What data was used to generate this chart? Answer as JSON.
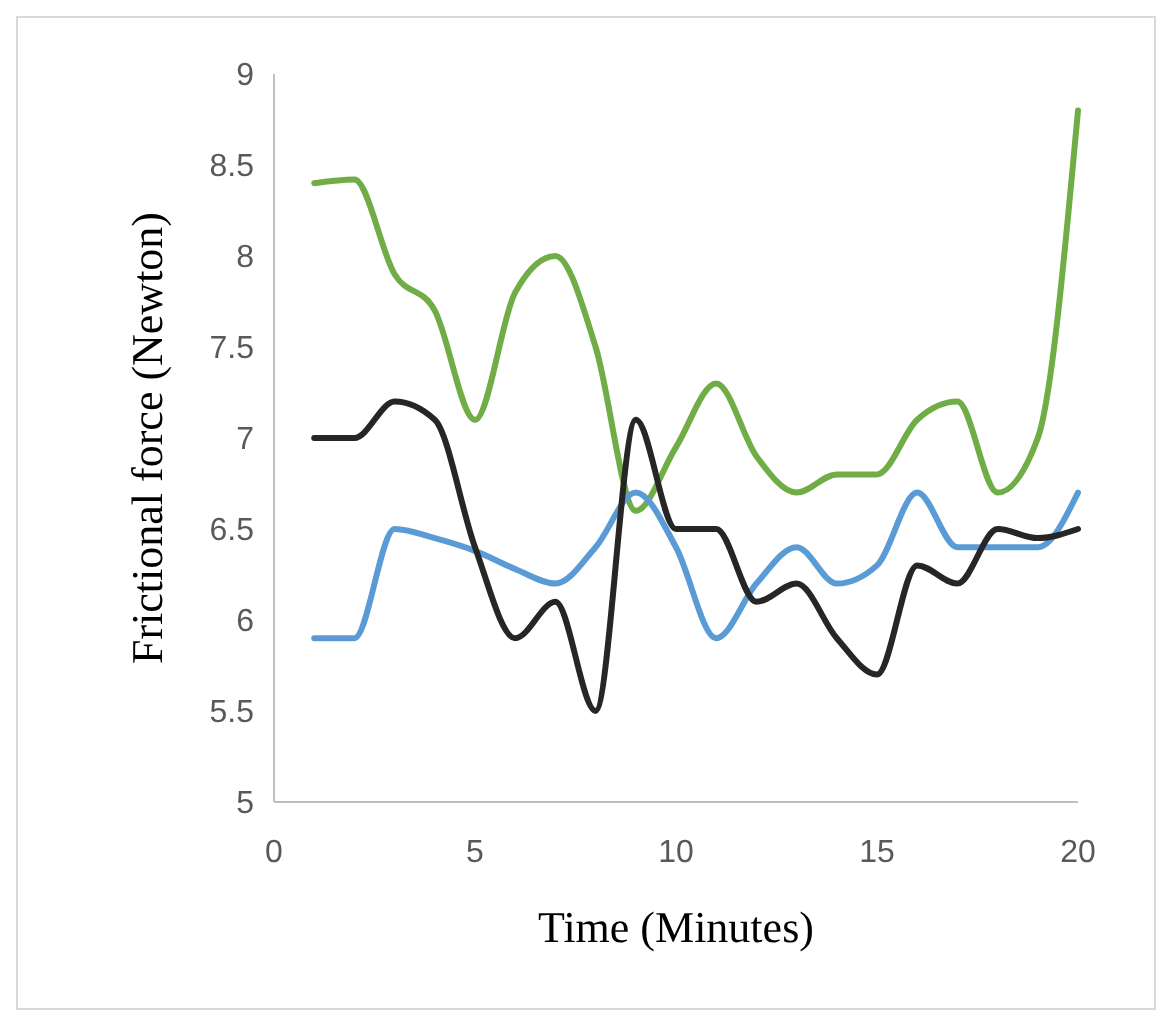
{
  "chart_data": {
    "type": "line",
    "xlabel": "Time (Minutes)",
    "ylabel": "Frictional force (Newton)",
    "x": [
      1,
      2,
      3,
      4,
      5,
      6,
      7,
      8,
      9,
      10,
      11,
      12,
      13,
      14,
      15,
      16,
      17,
      18,
      19,
      20
    ],
    "xlim": [
      0,
      20
    ],
    "xticks": [
      0,
      5,
      10,
      15,
      20
    ],
    "ylim": [
      5,
      9
    ],
    "yticks": [
      5,
      5.5,
      6,
      6.5,
      7,
      7.5,
      8,
      8.5,
      9
    ],
    "marker": "none",
    "line_style": "solid",
    "series": [
      {
        "color": "#70ad47",
        "values": [
          8.4,
          8.42,
          7.9,
          7.7,
          7.1,
          7.8,
          8.0,
          7.5,
          6.6,
          6.95,
          7.3,
          6.9,
          6.7,
          6.8,
          6.8,
          7.1,
          7.2,
          6.7,
          7.0,
          8.8
        ]
      },
      {
        "color": "#5b9bd5",
        "values": [
          5.9,
          5.9,
          6.5,
          6.45,
          6.38,
          6.28,
          6.2,
          6.4,
          6.7,
          6.4,
          5.9,
          6.2,
          6.4,
          6.2,
          6.3,
          6.7,
          6.4,
          6.4,
          6.4,
          6.7
        ]
      },
      {
        "color": "#262626",
        "values": [
          7.0,
          7.0,
          7.2,
          7.1,
          6.4,
          5.9,
          6.1,
          5.5,
          7.1,
          6.5,
          6.5,
          6.1,
          6.2,
          5.9,
          5.7,
          6.3,
          6.2,
          6.5,
          6.45,
          6.5
        ]
      }
    ]
  }
}
